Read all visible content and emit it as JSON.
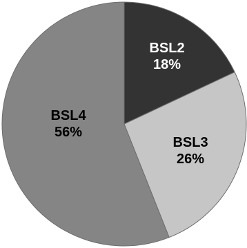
{
  "chart_data": {
    "type": "pie",
    "title": "",
    "categories": [
      "BSL2",
      "BSL3",
      "BSL4"
    ],
    "values": [
      18,
      26,
      56
    ],
    "value_labels": [
      "18%",
      "26%",
      "56%"
    ],
    "colors": [
      "#333333",
      "#c6c6c6",
      "#858585"
    ],
    "label_colors": [
      "#ffffff",
      "#000000",
      "#000000"
    ],
    "start_angle": "12 o'clock",
    "direction": "clockwise",
    "legend": "none"
  }
}
